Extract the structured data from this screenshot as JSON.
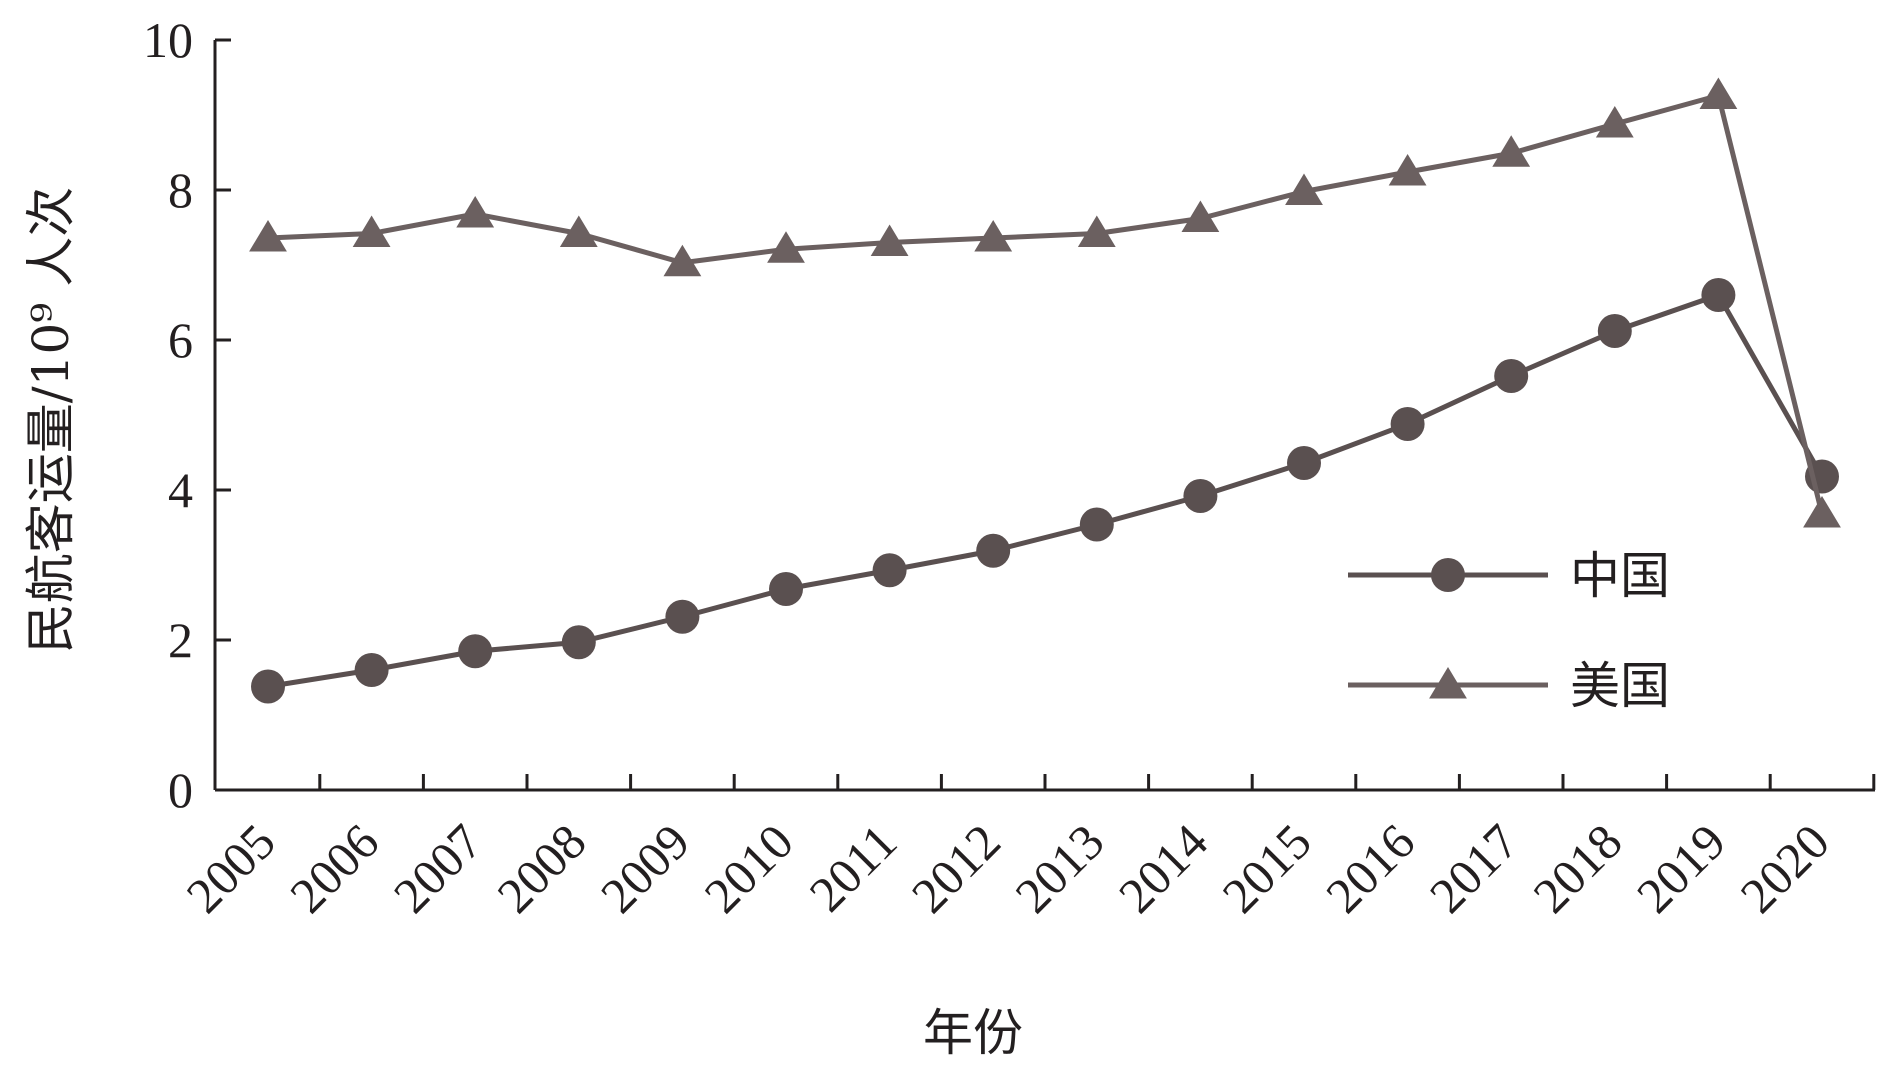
{
  "chart_data": {
    "type": "line",
    "x": [
      "2005",
      "2006",
      "2007",
      "2008",
      "2009",
      "2010",
      "2011",
      "2012",
      "2013",
      "2014",
      "2015",
      "2016",
      "2017",
      "2018",
      "2019",
      "2020"
    ],
    "series": [
      {
        "name": "中国",
        "marker": "circle",
        "color": "#5a5050",
        "values": [
          1.38,
          1.6,
          1.85,
          1.97,
          2.31,
          2.68,
          2.93,
          3.19,
          3.54,
          3.92,
          4.36,
          4.88,
          5.52,
          6.12,
          6.6,
          4.18
        ]
      },
      {
        "name": "美国",
        "marker": "triangle",
        "color": "#6b6060",
        "values": [
          7.36,
          7.42,
          7.68,
          7.42,
          7.03,
          7.21,
          7.3,
          7.36,
          7.42,
          7.62,
          7.98,
          8.24,
          8.49,
          8.88,
          9.26,
          3.68
        ]
      }
    ],
    "xlabel": "年份",
    "ylabel": "民航客运量/10⁹ 人次",
    "ylim": [
      0,
      10
    ],
    "yticks": [
      0,
      2,
      4,
      6,
      8,
      10
    ],
    "legend_position": "inside-lower-right",
    "grid": false
  }
}
